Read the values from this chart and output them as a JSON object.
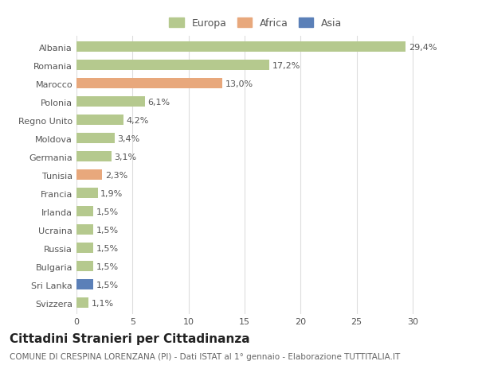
{
  "categories": [
    "Svizzera",
    "Sri Lanka",
    "Bulgaria",
    "Russia",
    "Ucraina",
    "Irlanda",
    "Francia",
    "Tunisia",
    "Germania",
    "Moldova",
    "Regno Unito",
    "Polonia",
    "Marocco",
    "Romania",
    "Albania"
  ],
  "values": [
    1.1,
    1.5,
    1.5,
    1.5,
    1.5,
    1.5,
    1.9,
    2.3,
    3.1,
    3.4,
    4.2,
    6.1,
    13.0,
    17.2,
    29.4
  ],
  "labels": [
    "1,1%",
    "1,5%",
    "1,5%",
    "1,5%",
    "1,5%",
    "1,5%",
    "1,9%",
    "2,3%",
    "3,1%",
    "3,4%",
    "4,2%",
    "6,1%",
    "13,0%",
    "17,2%",
    "29,4%"
  ],
  "colors": [
    "#b5c98e",
    "#5b80b8",
    "#b5c98e",
    "#b5c98e",
    "#b5c98e",
    "#b5c98e",
    "#b5c98e",
    "#e8a87c",
    "#b5c98e",
    "#b5c98e",
    "#b5c98e",
    "#b5c98e",
    "#e8a87c",
    "#b5c98e",
    "#b5c98e"
  ],
  "legend_labels": [
    "Europa",
    "Africa",
    "Asia"
  ],
  "legend_colors": [
    "#b5c98e",
    "#e8a87c",
    "#5b80b8"
  ],
  "title": "Cittadini Stranieri per Cittadinanza",
  "subtitle": "COMUNE DI CRESPINA LORENZANA (PI) - Dati ISTAT al 1° gennaio - Elaborazione TUTTITALIA.IT",
  "xlim": [
    0,
    32
  ],
  "xticks": [
    0,
    5,
    10,
    15,
    20,
    25,
    30
  ],
  "background_color": "#ffffff",
  "grid_color": "#dddddd",
  "bar_height": 0.55,
  "title_fontsize": 11,
  "subtitle_fontsize": 7.5,
  "label_fontsize": 8,
  "tick_fontsize": 8,
  "legend_fontsize": 9
}
